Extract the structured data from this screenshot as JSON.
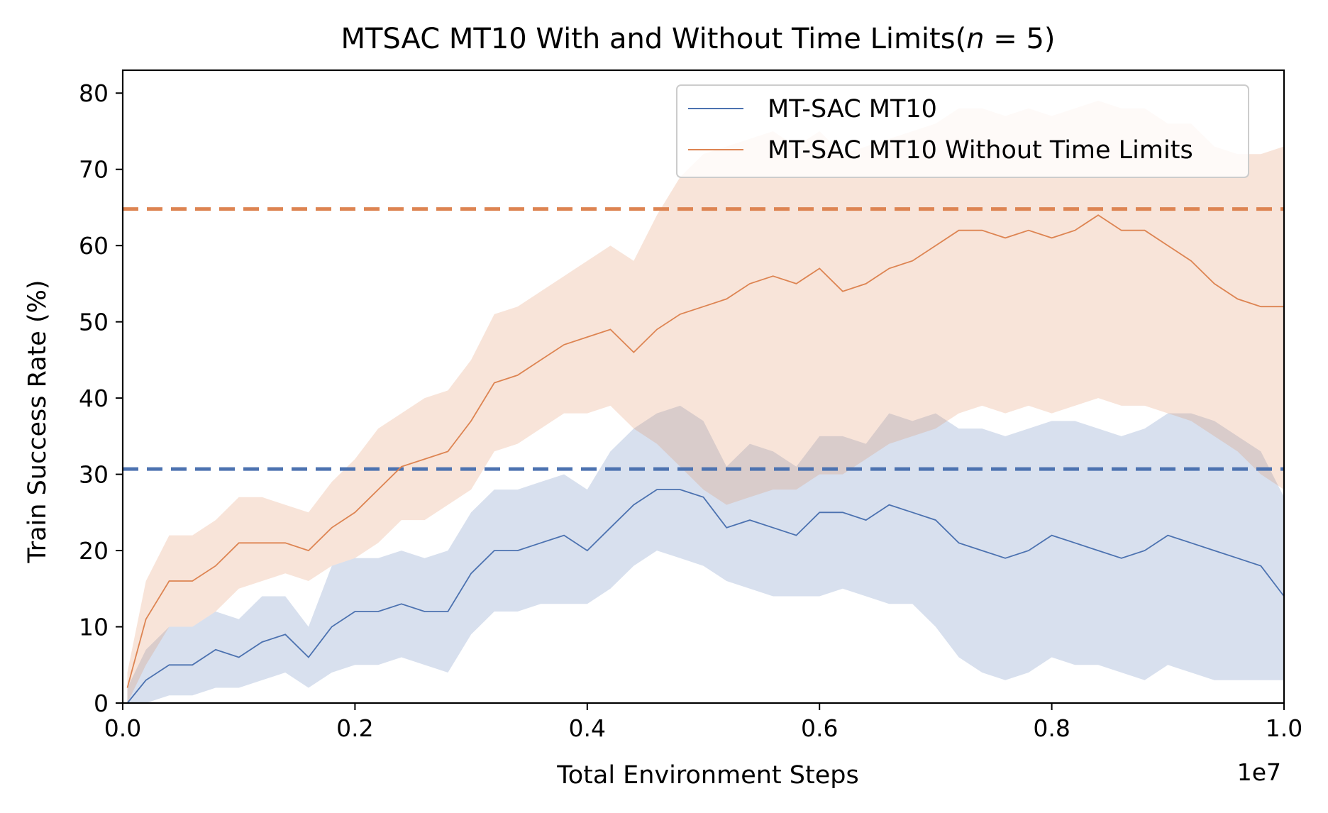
{
  "chart_data": {
    "type": "line",
    "title": "MTSAC MT10 With and Without Time Limits(",
    "title_italic": "n",
    "title_suffix": " = 5)",
    "xlabel": "Total Environment Steps",
    "ylabel": "Train Success Rate (%)",
    "x_offset_label": "1e7",
    "xlim": [
      0.0,
      1.0
    ],
    "ylim": [
      0,
      83
    ],
    "x_ticks": [
      "0.0",
      "0.2",
      "0.4",
      "0.6",
      "0.8",
      "1.0"
    ],
    "y_ticks": [
      "0",
      "10",
      "20",
      "30",
      "40",
      "50",
      "60",
      "70",
      "80"
    ],
    "grid": false,
    "legend_position": "top-right",
    "x": [
      0.004,
      0.02,
      0.04,
      0.06,
      0.08,
      0.1,
      0.12,
      0.14,
      0.16,
      0.18,
      0.2,
      0.22,
      0.24,
      0.26,
      0.28,
      0.3,
      0.32,
      0.34,
      0.36,
      0.38,
      0.4,
      0.42,
      0.44,
      0.46,
      0.48,
      0.5,
      0.52,
      0.54,
      0.56,
      0.58,
      0.6,
      0.62,
      0.64,
      0.66,
      0.68,
      0.7,
      0.72,
      0.74,
      0.76,
      0.78,
      0.8,
      0.82,
      0.84,
      0.86,
      0.88,
      0.9,
      0.92,
      0.94,
      0.96,
      0.98,
      1.0
    ],
    "series": [
      {
        "name": "MT-SAC MT10",
        "color": "#4c72b0",
        "values": [
          0,
          3,
          5,
          5,
          7,
          6,
          8,
          9,
          6,
          10,
          12,
          12,
          13,
          12,
          12,
          17,
          20,
          20,
          21,
          22,
          20,
          23,
          26,
          28,
          28,
          27,
          23,
          24,
          23,
          22,
          25,
          25,
          24,
          26,
          25,
          24,
          21,
          20,
          19,
          20,
          22,
          21,
          20,
          19,
          20,
          22,
          21,
          20,
          19,
          18,
          14
        ],
        "lower": [
          0,
          0,
          1,
          1,
          2,
          2,
          3,
          4,
          2,
          4,
          5,
          5,
          6,
          5,
          4,
          9,
          12,
          12,
          13,
          13,
          13,
          15,
          18,
          20,
          19,
          18,
          16,
          15,
          14,
          14,
          14,
          15,
          14,
          13,
          13,
          10,
          6,
          4,
          3,
          4,
          6,
          5,
          5,
          4,
          3,
          5,
          4,
          3,
          3,
          3,
          3
        ],
        "upper": [
          2,
          7,
          10,
          10,
          12,
          11,
          14,
          14,
          10,
          18,
          19,
          19,
          20,
          19,
          20,
          25,
          28,
          28,
          29,
          30,
          28,
          33,
          36,
          38,
          39,
          37,
          31,
          34,
          33,
          31,
          35,
          35,
          34,
          38,
          37,
          38,
          36,
          36,
          35,
          36,
          37,
          37,
          36,
          35,
          36,
          38,
          38,
          37,
          35,
          33,
          27
        ],
        "mean_line": 30.7
      },
      {
        "name": "MT-SAC MT10 Without Time Limits",
        "color": "#dd8452",
        "values": [
          2,
          11,
          16,
          16,
          18,
          21,
          21,
          21,
          20,
          23,
          25,
          28,
          31,
          32,
          33,
          37,
          42,
          43,
          45,
          47,
          48,
          49,
          46,
          49,
          51,
          52,
          53,
          55,
          56,
          55,
          57,
          54,
          55,
          57,
          58,
          60,
          62,
          62,
          61,
          62,
          61,
          62,
          64,
          62,
          62,
          60,
          58,
          55,
          53,
          52,
          52
        ],
        "lower": [
          0,
          5,
          10,
          10,
          12,
          15,
          16,
          17,
          16,
          18,
          19,
          21,
          24,
          24,
          26,
          28,
          33,
          34,
          36,
          38,
          38,
          39,
          36,
          34,
          31,
          28,
          26,
          27,
          28,
          28,
          30,
          30,
          32,
          34,
          35,
          36,
          38,
          39,
          38,
          39,
          38,
          39,
          40,
          39,
          39,
          38,
          37,
          35,
          33,
          30,
          28
        ],
        "upper": [
          4,
          16,
          22,
          22,
          24,
          27,
          27,
          26,
          25,
          29,
          32,
          36,
          38,
          40,
          41,
          45,
          51,
          52,
          54,
          56,
          58,
          60,
          58,
          64,
          69,
          72,
          73,
          74,
          75,
          73,
          75,
          72,
          73,
          74,
          75,
          76,
          78,
          78,
          77,
          78,
          77,
          78,
          79,
          78,
          78,
          76,
          76,
          73,
          72,
          72,
          73
        ],
        "mean_line": 64.8
      }
    ]
  }
}
